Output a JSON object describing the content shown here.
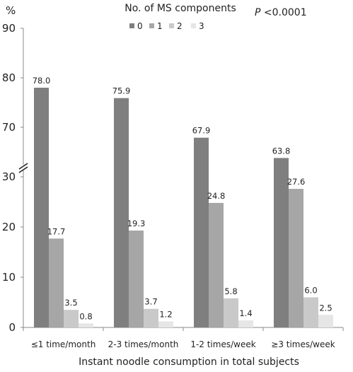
{
  "chart_data": {
    "type": "bar",
    "title": "No. of MS components",
    "annotation": "P <0.0001",
    "xlabel": "Instant noodle consumption in total subjects",
    "ylabel": "%",
    "categories": [
      "≤1 time/month",
      "2-3 times/month",
      "1-2 times/week",
      "≥3 times/week"
    ],
    "series": [
      {
        "name": "0",
        "color": "#7f7f7f",
        "values": [
          78.0,
          75.9,
          67.9,
          63.8
        ],
        "labels": [
          "78.0",
          "75.9",
          "67.9",
          "63.8"
        ]
      },
      {
        "name": "1",
        "color": "#a6a6a6",
        "values": [
          17.7,
          19.3,
          24.8,
          27.6
        ],
        "labels": [
          "17.7",
          "19.3",
          "24.8",
          "27.6"
        ]
      },
      {
        "name": "2",
        "color": "#c9c9c9",
        "values": [
          3.5,
          3.7,
          5.8,
          6.0
        ],
        "labels": [
          "3.5",
          "3.7",
          "5.8",
          "6.0"
        ]
      },
      {
        "name": "3",
        "color": "#e6e6e6",
        "values": [
          0.8,
          1.2,
          1.4,
          2.5
        ],
        "labels": [
          "0.8",
          "1.2",
          "1.4",
          "2.5"
        ]
      }
    ],
    "yticks": [
      "0",
      "10",
      "20",
      "30",
      "70",
      "80",
      "90"
    ],
    "ylim_lower": [
      0,
      30
    ],
    "ylim_upper": [
      60,
      90
    ],
    "axis_break": true,
    "legend_position": "top",
    "grid": false
  }
}
